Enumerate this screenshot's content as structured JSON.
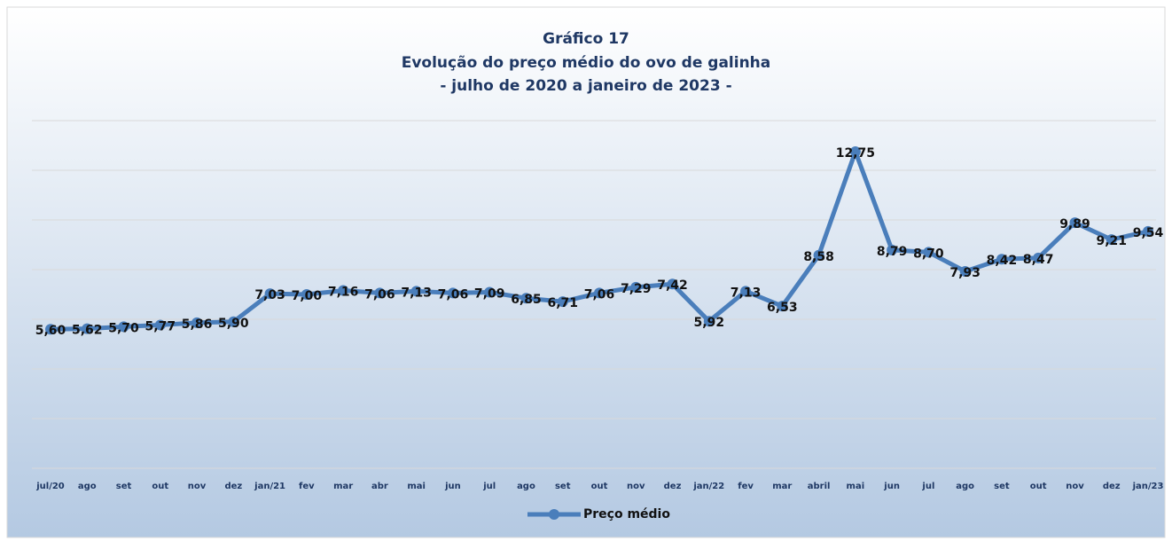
{
  "chart_data": {
    "type": "line",
    "title": "Gráfico 17",
    "subtitle": [
      "Evolução do preço médio do ovo de galinha",
      "- julho de 2020 a janeiro de 2023 -"
    ],
    "categories": [
      "jul/20",
      "ago",
      "set",
      "out",
      "nov",
      "dez",
      "jan/21",
      "fev",
      "mar",
      "abr",
      "mai",
      "jun",
      "jul",
      "ago",
      "set",
      "out",
      "nov",
      "dez",
      "jan/22",
      "fev",
      "mar",
      "abril",
      "mai",
      "jun",
      "jul",
      "ago",
      "set",
      "out",
      "nov",
      "dez",
      "jan/23"
    ],
    "series": [
      {
        "name": "Preço médio",
        "color": "#4a7ebb",
        "values": [
          5.6,
          5.62,
          5.7,
          5.77,
          5.86,
          5.9,
          7.03,
          7.0,
          7.16,
          7.06,
          7.13,
          7.06,
          7.09,
          6.85,
          6.71,
          7.06,
          7.29,
          7.42,
          5.92,
          7.13,
          6.53,
          8.58,
          12.75,
          8.79,
          8.7,
          7.93,
          8.42,
          8.47,
          9.89,
          9.21,
          9.54
        ],
        "value_labels": [
          "5,60",
          "5,62",
          "5,70",
          "5,77",
          "5,86",
          "5,90",
          "7,03",
          "7,00",
          "7,16",
          "7,06",
          "7,13",
          "7,06",
          "7,09",
          "6,85",
          "6,71",
          "7,06",
          "7,29",
          "7,42",
          "5,92",
          "7,13",
          "6,53",
          "8,58",
          "12,75",
          "8,79",
          "8,70",
          "7,93",
          "8,42",
          "8,47",
          "9,89",
          "9,21",
          "9,54"
        ]
      }
    ],
    "ylim": [
      0,
      14
    ],
    "yticks": [
      0,
      2,
      4,
      6,
      8,
      10,
      12,
      14
    ],
    "grid": true,
    "legend": "bottom"
  }
}
